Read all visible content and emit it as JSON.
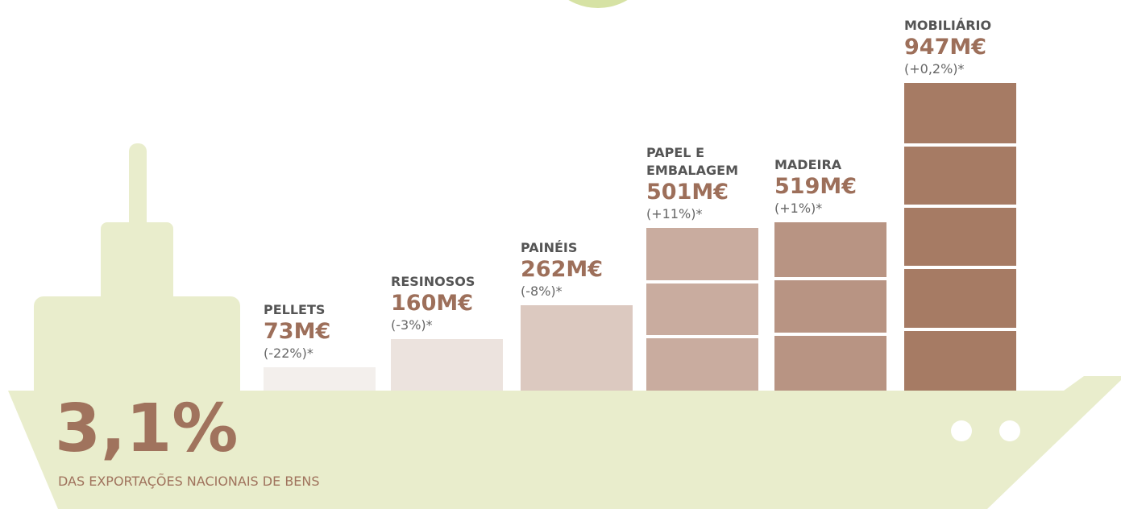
{
  "chart_data": {
    "type": "bar",
    "categories": [
      "PELLETS",
      "RESINOSOS",
      "PAINÉIS",
      "PAPEL E EMBALAGEM",
      "MADEIRA",
      "MOBILIÁRIO"
    ],
    "values": [
      73,
      160,
      262,
      501,
      519,
      947
    ],
    "value_labels": [
      "73M€",
      "160M€",
      "262M€",
      "501M€",
      "519M€",
      "947M€"
    ],
    "annotations": [
      "(-22%)*",
      "(-3%)*",
      "(-8%)*",
      "(+11%)*",
      "(+1%)*",
      "(+0,2%)*"
    ],
    "colors": [
      "#f3efec",
      "#ece3de",
      "#dcc9c0",
      "#c9ac9f",
      "#b89483",
      "#a67b64"
    ],
    "highlight": "3,1%",
    "highlight_caption": "DAS EXPORTAÇÕES NACIONAIS DE BENS"
  }
}
